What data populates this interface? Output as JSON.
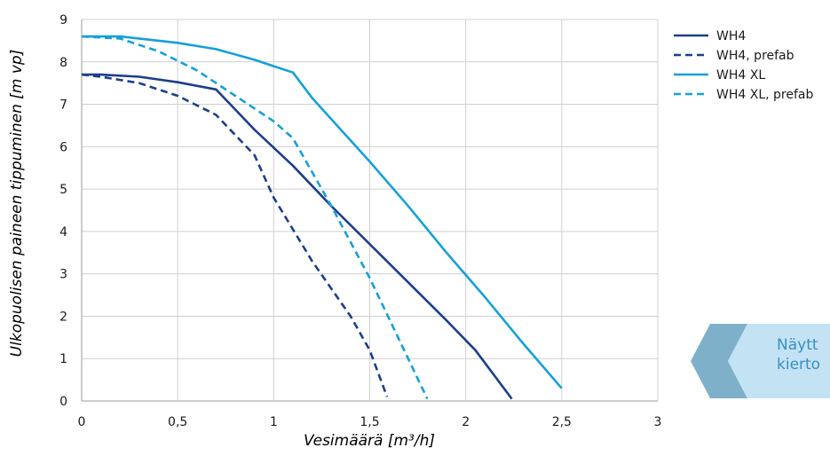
{
  "chart_data": {
    "type": "line",
    "xlabel": "Vesimäärä [m³/h]",
    "ylabel": "Ulkopuolisen paineen tippuminen [m vp]",
    "xlim": [
      0,
      3
    ],
    "ylim": [
      0,
      9
    ],
    "x_ticks": [
      "0",
      "0,5",
      "1",
      "1,5",
      "2",
      "2,5",
      "3"
    ],
    "y_ticks": [
      "0",
      "1",
      "2",
      "3",
      "4",
      "5",
      "6",
      "7",
      "8",
      "9"
    ],
    "grid": true,
    "legend_position": "top-right",
    "series": [
      {
        "name": "WH4",
        "color": "#1c3f8a",
        "dash": false,
        "points": [
          [
            0,
            7.7
          ],
          [
            0.1,
            7.7
          ],
          [
            0.3,
            7.65
          ],
          [
            0.5,
            7.52
          ],
          [
            0.7,
            7.35
          ],
          [
            0.9,
            6.4
          ],
          [
            1.1,
            5.55
          ],
          [
            1.3,
            4.6
          ],
          [
            1.5,
            3.7
          ],
          [
            1.7,
            2.8
          ],
          [
            1.9,
            1.9
          ],
          [
            2.05,
            1.2
          ],
          [
            2.24,
            0.05
          ]
        ]
      },
      {
        "name": "WH4, prefab",
        "color": "#1c3f8a",
        "dash": true,
        "points": [
          [
            0,
            7.7
          ],
          [
            0.1,
            7.65
          ],
          [
            0.3,
            7.5
          ],
          [
            0.5,
            7.2
          ],
          [
            0.7,
            6.75
          ],
          [
            0.9,
            5.8
          ],
          [
            1.0,
            4.8
          ],
          [
            1.2,
            3.3
          ],
          [
            1.4,
            2.0
          ],
          [
            1.5,
            1.2
          ],
          [
            1.59,
            0.1
          ]
        ]
      },
      {
        "name": "WH4 XL",
        "color": "#16a0d8",
        "dash": false,
        "points": [
          [
            0,
            8.6
          ],
          [
            0.2,
            8.6
          ],
          [
            0.5,
            8.45
          ],
          [
            0.7,
            8.3
          ],
          [
            0.9,
            8.05
          ],
          [
            1.0,
            7.9
          ],
          [
            1.1,
            7.75
          ],
          [
            1.2,
            7.15
          ],
          [
            1.3,
            6.65
          ],
          [
            1.5,
            5.65
          ],
          [
            1.7,
            4.6
          ],
          [
            1.9,
            3.5
          ],
          [
            2.1,
            2.45
          ],
          [
            2.3,
            1.35
          ],
          [
            2.5,
            0.3
          ]
        ]
      },
      {
        "name": "WH4 XL, prefab",
        "color": "#16a0d8",
        "dash": true,
        "points": [
          [
            0,
            8.6
          ],
          [
            0.2,
            8.55
          ],
          [
            0.4,
            8.25
          ],
          [
            0.6,
            7.8
          ],
          [
            0.8,
            7.2
          ],
          [
            1.0,
            6.6
          ],
          [
            1.1,
            6.2
          ],
          [
            1.3,
            4.6
          ],
          [
            1.5,
            2.9
          ],
          [
            1.7,
            1.0
          ],
          [
            1.8,
            0.05
          ]
        ]
      }
    ]
  },
  "callout": {
    "line1": "Näytt",
    "line2": "kierto"
  }
}
